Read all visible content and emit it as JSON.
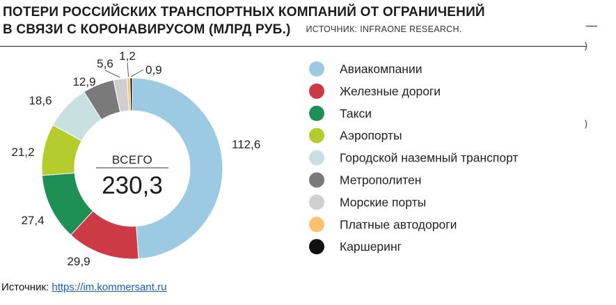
{
  "header": {
    "title_line1": "ПОТЕРИ РОССИЙСКИХ ТРАНСПОРТНЫХ КОМПАНИЙ ОТ ОГРАНИЧЕНИЙ",
    "title_line2": "В СВЯЗИ С КОРОНАВИРУСОМ (МЛРД РУБ.)",
    "source_inline": "ИСТОЧНИК: INFRAONE RESEARCH."
  },
  "footer": {
    "label": "Источник:",
    "link_text": "https://im.kommersant.ru"
  },
  "colors": {
    "Авиакомпании": "#9ccae3",
    "Железные дороги": "#cc3a45",
    "Такси": "#1e8f55",
    "Аэропорты": "#b5cc2e",
    "Городской наземный транспорт": "#c8e0e0",
    "Метрополитен": "#7a7a7a",
    "Морские порты": "#cfcfcf",
    "Платные автодороги": "#f8c271",
    "Каршеринг": "#111111"
  },
  "chart_data": {
    "type": "donut",
    "center_label": "ВСЕГО",
    "total": "230,3",
    "legend_position": "right",
    "slices": [
      {
        "name": "Авиакомпании",
        "value": 112.6,
        "label": "112,6"
      },
      {
        "name": "Железные дороги",
        "value": 29.9,
        "label": "29,9"
      },
      {
        "name": "Такси",
        "value": 27.4,
        "label": "27,4"
      },
      {
        "name": "Аэропорты",
        "value": 21.2,
        "label": "21,2"
      },
      {
        "name": "Городской наземный транспорт",
        "value": 18.6,
        "label": "18,6"
      },
      {
        "name": "Метрополитен",
        "value": 12.9,
        "label": "12,9"
      },
      {
        "name": "Морские порты",
        "value": 5.6,
        "label": "5,6"
      },
      {
        "name": "Платные автодороги",
        "value": 1.2,
        "label": "1,2"
      },
      {
        "name": "Каршеринг",
        "value": 0.9,
        "label": "0,9"
      }
    ]
  }
}
